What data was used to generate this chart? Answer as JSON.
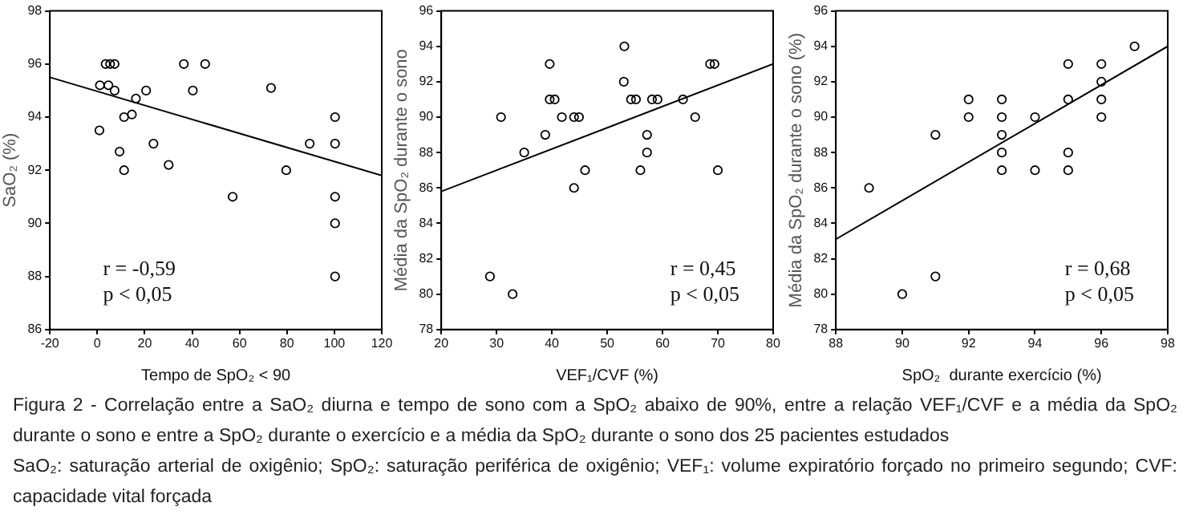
{
  "chart_data": [
    {
      "type": "scatter",
      "xlabel": "Tempo de SpO₂ < 90",
      "ylabel": "SaO₂ (%)",
      "xlim": [
        -20,
        120
      ],
      "xticks": [
        -20,
        0,
        20,
        40,
        60,
        80,
        100,
        120
      ],
      "ylim": [
        86,
        98
      ],
      "yticks": [
        86,
        88,
        90,
        92,
        94,
        96,
        98
      ],
      "grid": false,
      "legend": false,
      "annotations": [
        "r = -0,59",
        "p < 0,05"
      ],
      "series": [
        {
          "type": "scatter",
          "marker": "circle",
          "color": "#000000",
          "x": [
            1.1,
            4.7,
            3.5,
            5.4,
            7.3,
            0.9,
            7.3,
            16.3,
            14.6,
            11.3,
            20.6,
            9.4,
            11.3,
            23.7,
            30.1,
            36.5,
            45.5,
            40.3,
            57.1,
            73.3,
            79.7,
            89.6,
            100.3,
            100.3,
            100.3,
            100.3,
            100.3
          ],
          "values": [
            95.2,
            95.2,
            96,
            96,
            96,
            93.5,
            95,
            94.7,
            94.1,
            94,
            95,
            92.7,
            92,
            93,
            92.2,
            96,
            96,
            95,
            91,
            95.1,
            92,
            93,
            94,
            93,
            91,
            90,
            88
          ]
        },
        {
          "type": "line",
          "marker": "none",
          "color": "#000000",
          "x": [
            -20,
            120
          ],
          "values": [
            95.5,
            91.8
          ]
        }
      ]
    },
    {
      "type": "scatter",
      "xlabel": "VEF₁/CVF (%)",
      "ylabel": "Média da SpO₂ durante o sono",
      "xlim": [
        20,
        80
      ],
      "xticks": [
        20,
        30,
        40,
        50,
        60,
        70,
        80
      ],
      "ylim": [
        78,
        96
      ],
      "yticks": [
        78,
        80,
        82,
        84,
        86,
        88,
        90,
        92,
        94,
        96
      ],
      "grid": false,
      "legend": false,
      "annotations": [
        "r = 0,45",
        "p < 0,05"
      ],
      "series": [
        {
          "type": "scatter",
          "marker": "circle",
          "color": "#000000",
          "x": [
            30.8,
            35,
            38.8,
            39.6,
            39.6,
            40.5,
            41.8,
            44,
            44.9,
            44,
            46,
            53.1,
            53,
            54.3,
            55.2,
            56,
            57.2,
            57.2,
            58.1,
            59.1,
            63.7,
            65.9,
            68.6,
            69.4,
            70,
            28.8,
            32.9
          ],
          "values": [
            90,
            88,
            89,
            93,
            91,
            91,
            90,
            90,
            90,
            86,
            87,
            94,
            92,
            91,
            91,
            87,
            89,
            88,
            91,
            91,
            91,
            90,
            93,
            93,
            87,
            81,
            80
          ]
        },
        {
          "type": "line",
          "marker": "none",
          "color": "#000000",
          "x": [
            20,
            80
          ],
          "values": [
            85.8,
            93
          ]
        }
      ]
    },
    {
      "type": "scatter",
      "xlabel": "SpO₂  durante exercício (%)",
      "ylabel": "Média da SpO₂ durante o sono (%)",
      "xlim": [
        88,
        98
      ],
      "xticks": [
        88,
        90,
        92,
        94,
        96,
        98
      ],
      "ylim": [
        78,
        96
      ],
      "yticks": [
        78,
        80,
        82,
        84,
        86,
        88,
        90,
        92,
        94,
        96
      ],
      "grid": false,
      "legend": false,
      "annotations": [
        "r = 0,68",
        "p < 0,05"
      ],
      "series": [
        {
          "type": "scatter",
          "marker": "circle",
          "color": "#000000",
          "x": [
            89,
            90,
            91,
            91,
            92,
            92,
            93,
            93,
            93,
            93,
            93,
            94,
            94,
            95,
            95,
            95,
            95,
            96,
            96,
            96,
            96,
            97
          ],
          "values": [
            86,
            80,
            89,
            81,
            91,
            90,
            91,
            90,
            89,
            88,
            87,
            90,
            87,
            93,
            91,
            88,
            87,
            93,
            92,
            91,
            90,
            94
          ]
        },
        {
          "type": "line",
          "marker": "none",
          "color": "#000000",
          "x": [
            88,
            98
          ],
          "values": [
            83.1,
            94
          ]
        }
      ]
    },
    {
      "type": "other",
      "annotations": [
        "Figura 2 - Correlação entre a SaO₂ diurna e tempo de sono com a SpO₂ abaixo de 90%, entre a relação VEF₁/CVF e a média da SpO₂ durante o sono e entre a SpO₂ durante o exercício e a média da SpO₂ durante o sono dos 25 pacientes estudados",
        "SaO₂: saturação arterial de oxigênio; SpO₂: saturação periférica de oxigênio; VEF₁: volume expiratório forçado no primeiro segundo; CVF: capacidade vital forçada"
      ]
    }
  ]
}
